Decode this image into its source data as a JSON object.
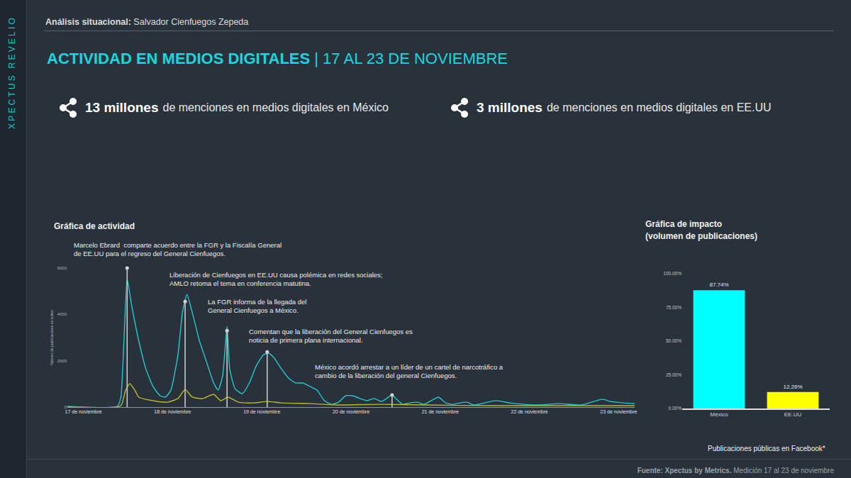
{
  "sidebar": "XPECTUS REVELIO",
  "header": {
    "label": "Análisis situacional:",
    "subject": "Salvador Cienfuegos Zepeda"
  },
  "title": {
    "main": "ACTIVIDAD EN MEDIOS DIGITALES",
    "period": "| 17 AL 23 DE NOVIEMBRE"
  },
  "stats": [
    {
      "value": "13 millones",
      "text": "de menciones en medios digitales en México"
    },
    {
      "value": "3 millones",
      "text": "de menciones en medios digitales en EE.UU"
    }
  ],
  "chart_data": [
    {
      "type": "line",
      "title": "Gráfica de actividad",
      "ylabel": "Número de publicaciones en twitter",
      "xlim": [
        16.82,
        23.18
      ],
      "xticks": [
        {
          "value": 17,
          "label": "17 de noviembre"
        },
        {
          "value": 18,
          "label": "18 de noviembre"
        },
        {
          "value": 19,
          "label": "19 de noviembre"
        },
        {
          "value": 20,
          "label": "20 de noviembre"
        },
        {
          "value": 21,
          "label": "21 de noviembre"
        },
        {
          "value": 22,
          "label": "22 de noviembre"
        },
        {
          "value": 23,
          "label": "23 de noviembre"
        }
      ],
      "ylim": [
        0,
        6000
      ],
      "yticks": [
        0,
        2000,
        4000,
        6000
      ],
      "grid": false,
      "series": [
        {
          "color": "#22c9cf",
          "x": [
            16.82,
            17.38,
            17.42,
            17.49,
            17.54,
            17.62,
            17.7,
            17.78,
            17.86,
            17.92,
            17.98,
            18.06,
            18.11,
            18.16,
            18.22,
            18.3,
            18.38,
            18.46,
            18.51,
            18.56,
            18.61,
            18.64,
            18.7,
            18.78,
            18.86,
            18.94,
            19.02,
            19.08,
            19.14,
            19.22,
            19.3,
            19.38,
            19.46,
            19.54,
            19.62,
            19.7,
            19.78,
            19.86,
            19.94,
            20.02,
            20.1,
            20.18,
            20.26,
            20.34,
            20.42,
            20.46,
            20.51,
            20.58,
            20.66,
            20.74,
            20.82,
            20.9,
            20.98,
            21.06,
            21.14,
            21.22,
            21.3,
            21.38,
            21.62,
            21.78,
            21.94,
            22.1,
            22.34,
            22.58,
            22.82,
            22.9,
            22.98,
            23.06,
            23.18
          ],
          "values": [
            30,
            30,
            430,
            5530,
            4400,
            2870,
            1650,
            890,
            490,
            430,
            730,
            2260,
            4090,
            4860,
            4090,
            2870,
            1950,
            1040,
            730,
            1340,
            3480,
            1650,
            790,
            580,
            1040,
            1800,
            2260,
            2320,
            2110,
            1650,
            1250,
            1040,
            1040,
            890,
            730,
            280,
            120,
            210,
            490,
            490,
            370,
            280,
            370,
            240,
            430,
            520,
            340,
            120,
            180,
            210,
            120,
            280,
            430,
            180,
            120,
            180,
            210,
            90,
            280,
            180,
            120,
            90,
            150,
            90,
            340,
            250,
            210,
            180,
            150
          ]
        },
        {
          "color": "#b8b82e",
          "x": [
            16.82,
            17.42,
            17.47,
            17.52,
            17.58,
            17.62,
            17.78,
            17.94,
            18.06,
            18.14,
            18.22,
            18.34,
            18.46,
            18.54,
            18.62,
            18.74,
            18.9,
            19.06,
            19.22,
            19.54,
            19.86,
            20.34,
            20.82,
            21.62,
            22.42,
            23.18
          ],
          "values": [
            10,
            60,
            700,
            1010,
            700,
            430,
            275,
            210,
            370,
            760,
            430,
            370,
            550,
            275,
            430,
            210,
            180,
            240,
            180,
            150,
            90,
            120,
            90,
            60,
            60,
            60
          ]
        }
      ],
      "annotations": [
        {
          "x": 17.49,
          "y": 6000,
          "lines": [
            "Marcelo Ebrard  comparte acuerdo entre la FGR y la Fiscalía General",
            "de EE.UU para el regreso del General Cienfuegos."
          ]
        },
        {
          "x": 18.14,
          "y": 4550,
          "lines": [
            "Liberación de Cienfuegos en EE.UU causa polémica en redes sociales;",
            "AMLO retoma el tema en conferencia matutina."
          ]
        },
        {
          "x": 18.61,
          "y": 3300,
          "lines": [
            "La FGR informa de la llegada del",
            "General Cienfuegos a México."
          ]
        },
        {
          "x": 19.06,
          "y": 2380,
          "lines": [
            "Comentan que la liberación del General Cienfuegos es",
            "noticia de primera plana internacional."
          ]
        },
        {
          "x": 20.46,
          "y": 520,
          "lines": [
            "México acordó arrestar a un líder de un cartel de narcotráfico a",
            "cambio de la liberación del general Cienfuegos."
          ]
        }
      ]
    },
    {
      "type": "bar",
      "title": "Gráfica de impacto",
      "subtitle": "(volumen de publicaciones)",
      "note": "Publicaciones públicas en Facebook*",
      "categories": [
        "México",
        "EE.UU"
      ],
      "values": [
        87.74,
        12.26
      ],
      "value_labels": [
        "87.74%",
        "12.26%"
      ],
      "colors": [
        "#00ffff",
        "#ffff00"
      ],
      "data_labels": true,
      "grid": false,
      "ylim": [
        0,
        100
      ],
      "yticks": [
        {
          "value": 0,
          "label": "0.00%"
        },
        {
          "value": 25,
          "label": "25.00%"
        },
        {
          "value": 50,
          "label": "50.00%"
        },
        {
          "value": 75,
          "label": "75.00%"
        },
        {
          "value": 100,
          "label": "100.00%"
        }
      ]
    }
  ],
  "footer": {
    "source": "Fuente: Xpectus by Metrics.",
    "text": "Medición 17 al 23 de noviembre"
  }
}
